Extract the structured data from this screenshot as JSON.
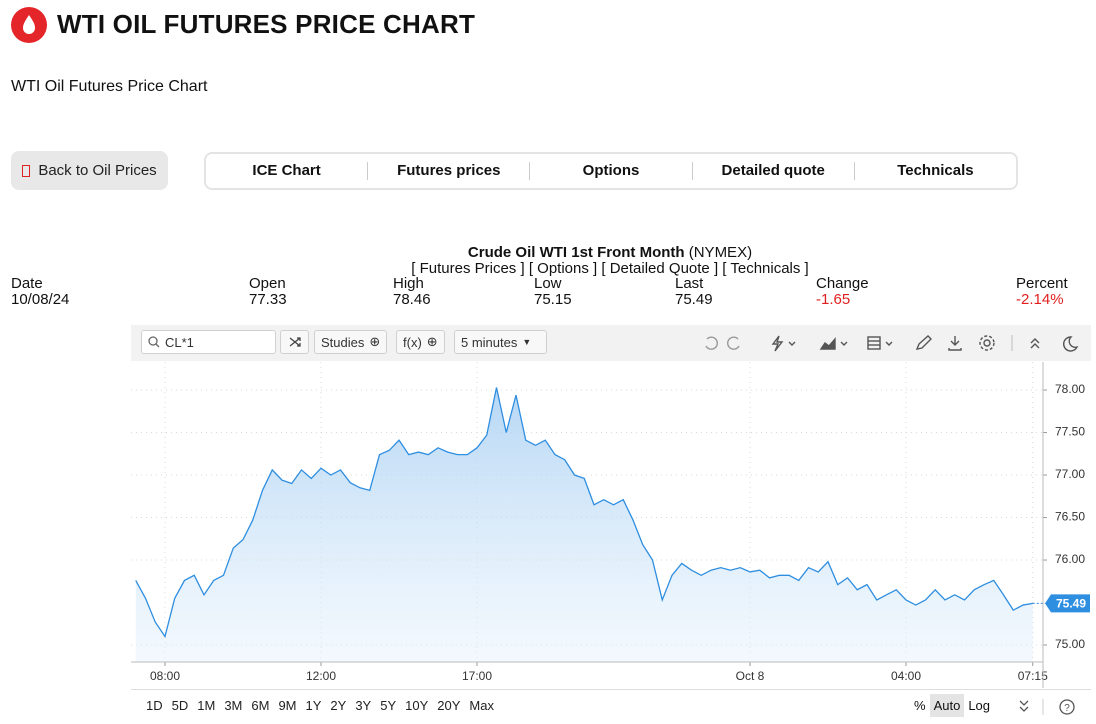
{
  "header": {
    "title": "WTI OIL FUTURES PRICE CHART",
    "subtitle": "WTI Oil Futures Price Chart"
  },
  "back_button": "Back to Oil Prices",
  "tabs": [
    "ICE Chart",
    "Futures prices",
    "Options",
    "Detailed quote",
    "Technicals"
  ],
  "quote": {
    "name": "Crude Oil WTI 1st Front Month",
    "exchange": "(NYMEX)",
    "links": [
      "[ Futures Prices ]",
      "[ Options ]",
      "[ Detailed Quote ]",
      "[ Technicals ]"
    ],
    "fields": [
      {
        "label": "Date",
        "value": "10/08/24"
      },
      {
        "label": "Open",
        "value": "77.33"
      },
      {
        "label": "High",
        "value": "78.46"
      },
      {
        "label": "Low",
        "value": "75.15"
      },
      {
        "label": "Last",
        "value": "75.49"
      },
      {
        "label": "Change",
        "value": "-1.65"
      },
      {
        "label": "Percent",
        "value": "-2.14%"
      }
    ]
  },
  "toolbar": {
    "symbol": "CL*1",
    "studies": "Studies",
    "functions": "f(x)",
    "interval": "5 minutes"
  },
  "chart_data": {
    "type": "area",
    "categories": [
      null,
      null,
      null,
      "08:00",
      null,
      null,
      null,
      null,
      null,
      null,
      null,
      null,
      null,
      null,
      null,
      null,
      null,
      null,
      null,
      "12:00",
      null,
      null,
      null,
      null,
      null,
      null,
      null,
      null,
      null,
      null,
      null,
      null,
      null,
      null,
      null,
      "17:00",
      null,
      null,
      null,
      null,
      null,
      null,
      null,
      null,
      null,
      null,
      null,
      null,
      null,
      null,
      null,
      null,
      null,
      null,
      null,
      null,
      null,
      null,
      null,
      null,
      null,
      null,
      null,
      "Oct 8",
      null,
      null,
      null,
      null,
      null,
      null,
      null,
      null,
      null,
      null,
      null,
      null,
      null,
      null,
      null,
      "04:00",
      null,
      null,
      null,
      null,
      null,
      null,
      null,
      null,
      null,
      null,
      null,
      null,
      "07:15"
    ],
    "series": [
      {
        "color": "#2e8ee0",
        "values": [
          75.76,
          75.55,
          75.27,
          75.1,
          75.55,
          75.76,
          75.82,
          75.59,
          75.76,
          75.82,
          76.14,
          76.24,
          76.47,
          76.82,
          77.06,
          76.94,
          76.9,
          77.06,
          76.96,
          77.08,
          77.0,
          77.06,
          76.91,
          76.85,
          76.82,
          77.24,
          77.29,
          77.41,
          77.24,
          77.27,
          77.24,
          77.32,
          77.27,
          77.24,
          77.24,
          77.32,
          77.47,
          78.03,
          77.5,
          77.94,
          77.41,
          77.35,
          77.41,
          77.24,
          77.18,
          77.0,
          76.96,
          76.65,
          76.71,
          76.65,
          76.71,
          76.47,
          76.18,
          76.0,
          75.53,
          75.82,
          75.96,
          75.88,
          75.82,
          75.88,
          75.91,
          75.88,
          75.91,
          75.86,
          75.88,
          75.79,
          75.82,
          75.82,
          75.76,
          75.91,
          75.86,
          75.98,
          75.71,
          75.79,
          75.65,
          75.71,
          75.53,
          75.59,
          75.65,
          75.53,
          75.47,
          75.53,
          75.65,
          75.53,
          75.59,
          75.53,
          75.65,
          75.71,
          75.76,
          75.59,
          75.41,
          75.47,
          75.49
        ]
      }
    ],
    "ylim": [
      74.8,
      78.33
    ],
    "yticks": [
      {
        "value": 75,
        "label": "75.00"
      },
      {
        "value": 76,
        "label": "76.00"
      },
      {
        "value": 76.5,
        "label": "76.50"
      },
      {
        "value": 77,
        "label": "77.00"
      },
      {
        "value": 77.5,
        "label": "77.50"
      },
      {
        "value": 78,
        "label": "78.00"
      }
    ],
    "grid": true
  },
  "ranges": [
    "1D",
    "5D",
    "1M",
    "3M",
    "6M",
    "9M",
    "1Y",
    "2Y",
    "3Y",
    "5Y",
    "10Y",
    "20Y",
    "Max"
  ],
  "scale_options": [
    "%",
    "Auto",
    "Log"
  ]
}
